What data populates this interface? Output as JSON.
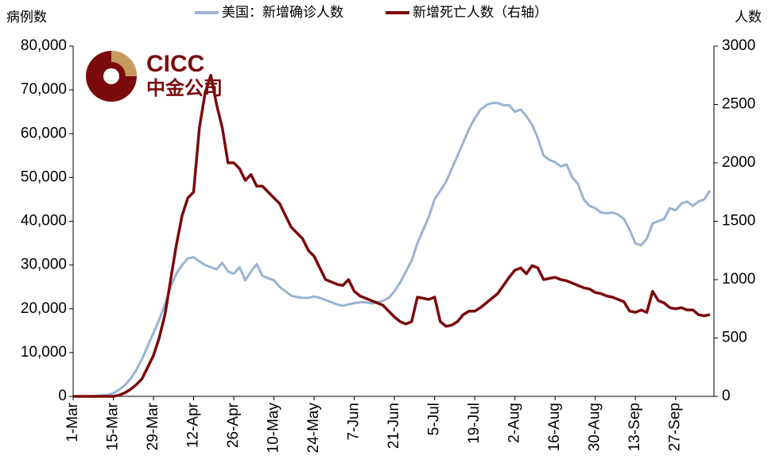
{
  "chart_data": {
    "type": "line",
    "y_label": "病例数",
    "y2_label": "人数",
    "logo": {
      "latin": "CICC",
      "cjk": "中金公司"
    },
    "categories": [
      "1-Mar",
      null,
      null,
      null,
      null,
      null,
      null,
      "15-Mar",
      null,
      null,
      null,
      null,
      null,
      null,
      "29-Mar",
      null,
      null,
      null,
      null,
      null,
      null,
      "12-Apr",
      null,
      null,
      null,
      null,
      null,
      null,
      "26-Apr",
      null,
      null,
      null,
      null,
      null,
      null,
      "10-May",
      null,
      null,
      null,
      null,
      null,
      null,
      "24-May",
      null,
      null,
      null,
      null,
      null,
      null,
      "7-Jun",
      null,
      null,
      null,
      null,
      null,
      null,
      "21-Jun",
      null,
      null,
      null,
      null,
      null,
      null,
      "5-Jul",
      null,
      null,
      null,
      null,
      null,
      null,
      "19-Jul",
      null,
      null,
      null,
      null,
      null,
      null,
      "2-Aug",
      null,
      null,
      null,
      null,
      null,
      null,
      "16-Aug",
      null,
      null,
      null,
      null,
      null,
      null,
      "30-Aug",
      null,
      null,
      null,
      null,
      null,
      null,
      "13-Sep",
      null,
      null,
      null,
      null,
      null,
      null,
      "27-Sep",
      null,
      null,
      null,
      null,
      null,
      null
    ],
    "series": [
      {
        "name": "美国：新增确诊人数",
        "color": "#9ab3d3",
        "values": [
          0,
          0,
          0,
          0,
          100,
          200,
          300,
          700,
          1500,
          2500,
          4000,
          6000,
          8500,
          11500,
          14500,
          17500,
          21000,
          25000,
          28000,
          30000,
          31500,
          31800,
          30800,
          30000,
          29500,
          29000,
          30500,
          28500,
          28000,
          29500,
          26500,
          28500,
          30200,
          27500,
          27000,
          26500,
          25000,
          24000,
          23000,
          22700,
          22500,
          22500,
          22800,
          22500,
          22000,
          21500,
          21000,
          20700,
          21000,
          21300,
          21500,
          21500,
          21200,
          21500,
          21800,
          22500,
          24000,
          26000,
          28500,
          31000,
          35000,
          38000,
          41000,
          45000,
          47000,
          49000,
          52000,
          55000,
          58000,
          61000,
          63500,
          65500,
          66500,
          67000,
          67000,
          66500,
          66500,
          65000,
          65500,
          64000,
          62000,
          59000,
          55000,
          54000,
          53500,
          52500,
          53000,
          50000,
          48500,
          45000,
          43500,
          43000,
          42000,
          41800,
          42000,
          41500,
          40500,
          38000,
          35000,
          34500,
          36000,
          39500,
          40000,
          40500,
          43000,
          42500,
          44000,
          44500,
          43500,
          44500,
          45000,
          47000
        ]
      },
      {
        "name": "新增死亡人数（右轴）",
        "color": "#7a0a0c",
        "axis": "y2",
        "values": [
          0,
          0,
          0,
          0,
          0,
          0,
          0,
          0,
          10,
          30,
          60,
          100,
          150,
          250,
          350,
          500,
          700,
          1000,
          1300,
          1550,
          1700,
          1750,
          2300,
          2600,
          2750,
          2500,
          2300,
          2000,
          2000,
          1950,
          1850,
          1900,
          1800,
          1800,
          1750,
          1700,
          1650,
          1550,
          1450,
          1400,
          1350,
          1250,
          1200,
          1100,
          1000,
          980,
          960,
          950,
          1000,
          900,
          860,
          840,
          820,
          800,
          780,
          730,
          680,
          640,
          620,
          640,
          850,
          840,
          830,
          850,
          640,
          600,
          610,
          640,
          700,
          730,
          730,
          760,
          800,
          840,
          880,
          950,
          1020,
          1080,
          1100,
          1050,
          1120,
          1100,
          1000,
          1010,
          1020,
          1000,
          990,
          970,
          950,
          930,
          920,
          890,
          880,
          860,
          850,
          830,
          810,
          730,
          720,
          740,
          720,
          900,
          820,
          800,
          760,
          750,
          760,
          740,
          740,
          700,
          690,
          700
        ]
      }
    ],
    "ylim": [
      0,
      80000
    ],
    "yticks": [
      0,
      {
        "value": 10000,
        "label": "10,000"
      },
      {
        "value": 20000,
        "label": "20,000"
      },
      {
        "value": 30000,
        "label": "30,000"
      },
      {
        "value": 40000,
        "label": "40,000"
      },
      {
        "value": 50000,
        "label": "50,000"
      },
      {
        "value": 60000,
        "label": "60,000"
      },
      {
        "value": 70000,
        "label": "70,000"
      },
      {
        "value": 80000,
        "label": "80,000"
      }
    ],
    "y2lim": [
      0,
      3000
    ],
    "y2ticks": [
      0,
      500,
      1000,
      1500,
      2000,
      2500,
      3000
    ],
    "grid": false
  }
}
